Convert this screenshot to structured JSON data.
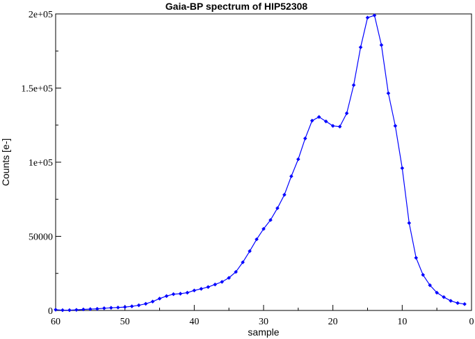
{
  "chart_data": {
    "type": "line",
    "title": "Gaia-BP spectrum of HIP52308",
    "xlabel": "sample",
    "ylabel": "Counts [e-]",
    "xlim": [
      60,
      0
    ],
    "x_reversed": true,
    "ylim": [
      0,
      200000
    ],
    "grid": false,
    "x_ticks": [
      60,
      50,
      40,
      30,
      20,
      10,
      0
    ],
    "x_tick_labels": [
      "60",
      "50",
      "40",
      "30",
      "20",
      "10",
      "0"
    ],
    "y_ticks": [
      0,
      50000,
      100000,
      150000,
      200000
    ],
    "y_tick_labels": [
      "0",
      "50000",
      "1e+05",
      "1.5e+05",
      "2e+05"
    ],
    "color": "#0000ff",
    "marker": "diamond",
    "series": [
      {
        "x": [
          60,
          59,
          58,
          57,
          56,
          55,
          54,
          53,
          52,
          51,
          50,
          49,
          48,
          47,
          46,
          45,
          44,
          43,
          42,
          41,
          40,
          39,
          38,
          37,
          36,
          35,
          34,
          33,
          32,
          31,
          30,
          29,
          28,
          27,
          26,
          25,
          24,
          23,
          22,
          21,
          20,
          19,
          18,
          17,
          16,
          15,
          14,
          13,
          12,
          11,
          10,
          9,
          8,
          7,
          6,
          5,
          4,
          3,
          2,
          1
        ],
        "values": [
          500,
          200,
          200,
          400,
          700,
          900,
          1100,
          1500,
          1800,
          2000,
          2300,
          2800,
          3500,
          4500,
          6000,
          8000,
          9700,
          11000,
          11300,
          12000,
          13500,
          14600,
          15800,
          17500,
          19300,
          22000,
          26000,
          32500,
          40000,
          48000,
          55000,
          61000,
          69000,
          78000,
          90500,
          102000,
          116000,
          128000,
          130500,
          127500,
          124500,
          124000,
          133000,
          152000,
          177500,
          197500,
          199000,
          179000,
          146500,
          124500,
          96000,
          59000,
          35500,
          24000,
          17000,
          12000,
          9000,
          6500,
          5000,
          4300
        ]
      }
    ]
  }
}
